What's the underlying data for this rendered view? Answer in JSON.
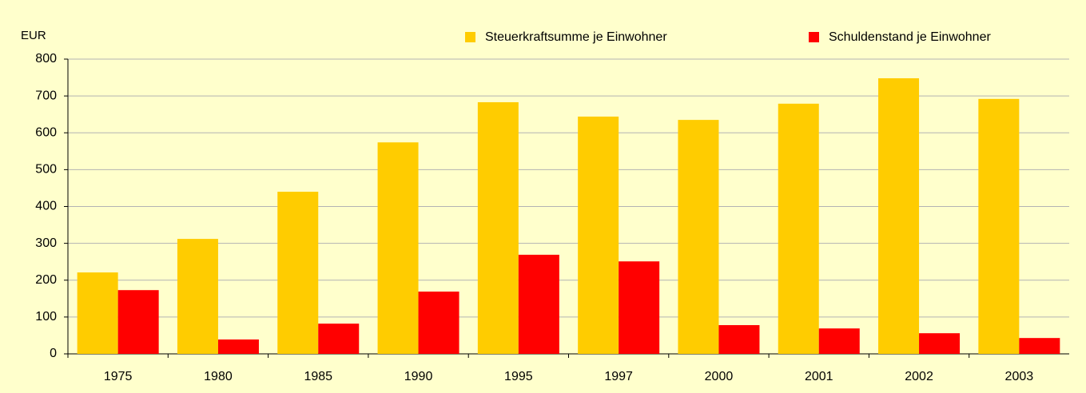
{
  "chart_data": {
    "type": "bar",
    "y_label": "EUR",
    "categories": [
      "1975",
      "1980",
      "1985",
      "1990",
      "1995",
      "1997",
      "2000",
      "2001",
      "2002",
      "2003"
    ],
    "series": [
      {
        "name": "Steuerkraftsumme je Einwohner",
        "color": "#ffcc00",
        "values": [
          221,
          312,
          440,
          574,
          683,
          644,
          635,
          679,
          748,
          692
        ]
      },
      {
        "name": "Schuldenstand je Einwohner",
        "color": "#ff0000",
        "values": [
          173,
          39,
          82,
          169,
          269,
          251,
          78,
          69,
          56,
          43
        ]
      }
    ],
    "ylim": [
      0,
      800
    ],
    "yticks": [
      0,
      100,
      200,
      300,
      400,
      500,
      600,
      700,
      800
    ],
    "grid": true,
    "legend": "top"
  }
}
